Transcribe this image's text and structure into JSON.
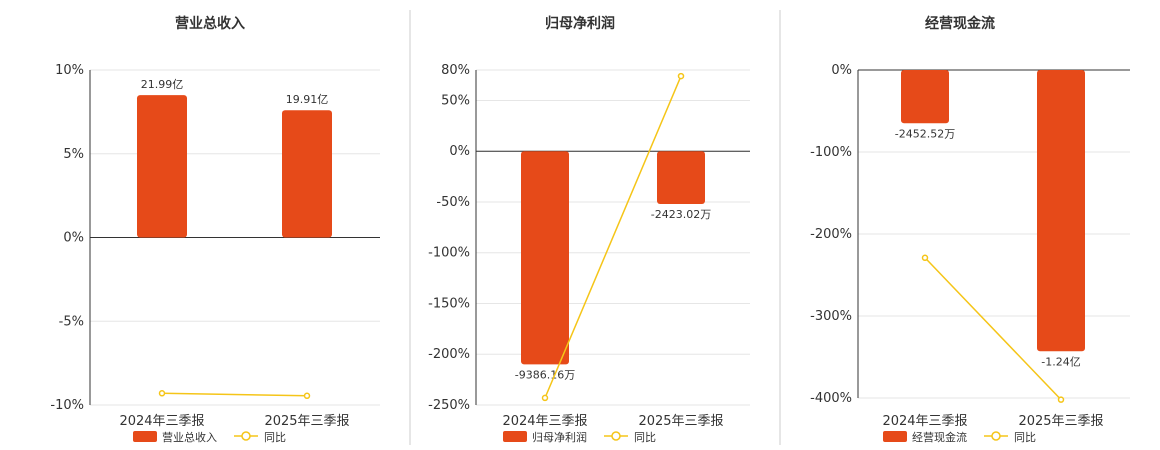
{
  "colors": {
    "bar": "#e64a19",
    "line": "#f5c518"
  },
  "chart_data": [
    {
      "type": "bar",
      "title": "营业总收入",
      "categories": [
        "2024年三季报",
        "2025年三季报"
      ],
      "ylim": [
        -10,
        10
      ],
      "yticks": [
        10,
        5,
        0,
        -5,
        -10
      ],
      "ytick_labels": [
        "10%",
        "5%",
        "0%",
        "-5%",
        "-10%"
      ],
      "bar_pct": [
        8.5,
        7.6
      ],
      "bar_labels": [
        "21.99亿",
        "19.91亿"
      ],
      "yoy_pct": [
        -9.3,
        -9.45
      ],
      "legend": [
        "营业总收入",
        "同比"
      ]
    },
    {
      "type": "bar",
      "title": "归母净利润",
      "categories": [
        "2024年三季报",
        "2025年三季报"
      ],
      "ylim": [
        -250,
        80
      ],
      "yticks": [
        80,
        50,
        0,
        -50,
        -100,
        -150,
        -200,
        -250
      ],
      "ytick_labels": [
        "80%",
        "50%",
        "0%",
        "-50%",
        "-100%",
        "-150%",
        "-200%",
        "-250%"
      ],
      "bar_pct": [
        -210,
        -52
      ],
      "bar_labels": [
        "-9386.16万",
        "-2423.02万"
      ],
      "yoy_pct": [
        -243,
        74
      ],
      "legend": [
        "归母净利润",
        "同比"
      ]
    },
    {
      "type": "bar",
      "title": "经营现金流",
      "categories": [
        "2024年三季报",
        "2025年三季报"
      ],
      "ylim": [
        -400,
        0
      ],
      "yticks": [
        0,
        -100,
        -200,
        -300,
        -400
      ],
      "ytick_labels": [
        "0%",
        "-100%",
        "-200%",
        "-300%",
        "-400%"
      ],
      "bar_pct": [
        -65,
        -343
      ],
      "bar_labels": [
        "-2452.52万",
        "-1.24亿"
      ],
      "yoy_pct": [
        -229,
        -402
      ],
      "legend": [
        "经营现金流",
        "同比"
      ]
    }
  ]
}
